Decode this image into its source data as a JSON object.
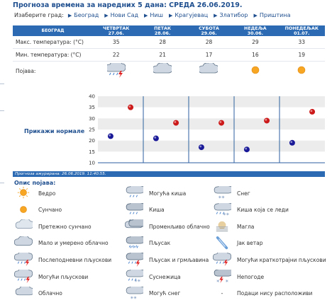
{
  "title": "Прогноза времена за наредних 5 дана: СРЕДА 26.06.2019.",
  "city_select": {
    "label": "Изаберите град:",
    "cities": [
      "Београд",
      "Нови Сад",
      "Ниш",
      "Крагујевац",
      "Златибор",
      "Приштина"
    ]
  },
  "table": {
    "city_header": "БЕОГРАД",
    "days": [
      {
        "name": "ЧЕТВРТАК",
        "date": "27.06.",
        "max": "35",
        "min": "22",
        "icon": "thunderstorm-sun-icon"
      },
      {
        "name": "ПЕТАК",
        "date": "28.06.",
        "max": "28",
        "min": "21",
        "icon": "partly-cloudy-icon"
      },
      {
        "name": "СУБОТА",
        "date": "29.06.",
        "max": "28",
        "min": "17",
        "icon": "partly-cloudy-icon"
      },
      {
        "name": "НЕДЕЉА",
        "date": "30.06.",
        "max": "29",
        "min": "16",
        "icon": "sunny-icon"
      },
      {
        "name": "ПОНЕДЕЉАК",
        "date": "01.07.",
        "max": "33",
        "min": "19",
        "icon": "sunny-icon"
      }
    ],
    "row_max_label": "Макс. температура: (°C)",
    "row_min_label": "Мин. температура: (°C)",
    "row_phen_label": "Појава:"
  },
  "chart_label": "Прикажи нормале",
  "chart_data": {
    "type": "scatter",
    "title": "",
    "xlabel": "",
    "ylabel": "",
    "ylim": [
      10,
      40
    ],
    "yticks": [
      "40",
      "35",
      "30",
      "25",
      "20",
      "15",
      "10"
    ],
    "categories": [
      "27.06.",
      "28.06.",
      "29.06.",
      "30.06.",
      "01.07."
    ],
    "series": [
      {
        "values": [
          35,
          28,
          28,
          29,
          33
        ],
        "color": "#cc1a1a"
      },
      {
        "values": [
          22,
          21,
          17,
          16,
          19
        ],
        "color": "#1a1a99"
      }
    ]
  },
  "updated": "Прогноза ажурирана:  26.06.2019. 11:40:55.",
  "legend": {
    "title": "Опис појава:",
    "items": [
      {
        "label": "Ведро",
        "icon": "clear-icon"
      },
      {
        "label": "Могућа киша",
        "icon": "possible-rain-icon"
      },
      {
        "label": "Снег",
        "icon": "snow-icon"
      },
      {
        "label": "Сунчано",
        "icon": "sunny-icon"
      },
      {
        "label": "Киша",
        "icon": "rain-icon"
      },
      {
        "label": "Киша која се леди",
        "icon": "freezing-rain-icon"
      },
      {
        "label": "Претежно сунчано",
        "icon": "mostly-sunny-icon"
      },
      {
        "label": "Променљиво облачно",
        "icon": "variable-cloudy-icon"
      },
      {
        "label": "Магла",
        "icon": "fog-icon"
      },
      {
        "label": "Мало и умерено облачно",
        "icon": "partly-cloudy-icon"
      },
      {
        "label": "Пљусак",
        "icon": "shower-icon"
      },
      {
        "label": "Јак ветар",
        "icon": "strong-wind-icon"
      },
      {
        "label": "Послеподневни пљускови",
        "icon": "afternoon-showers-icon"
      },
      {
        "label": "Пљусак и грмљавина",
        "icon": "thunder-shower-icon"
      },
      {
        "label": "Могући краткотрајни пљускови",
        "icon": "possible-short-showers-icon"
      },
      {
        "label": "Могући пљускови",
        "icon": "possible-showers-icon"
      },
      {
        "label": "Суснежица",
        "icon": "sleet-icon"
      },
      {
        "label": "Непогоде",
        "icon": "storm-icon"
      },
      {
        "label": "Облачно",
        "icon": "cloudy-icon"
      },
      {
        "label": "Могућ снег",
        "icon": "possible-snow-icon"
      },
      {
        "label": "Подаци нису расположиви",
        "icon": "no-data-dash",
        "dash": "-"
      }
    ]
  }
}
